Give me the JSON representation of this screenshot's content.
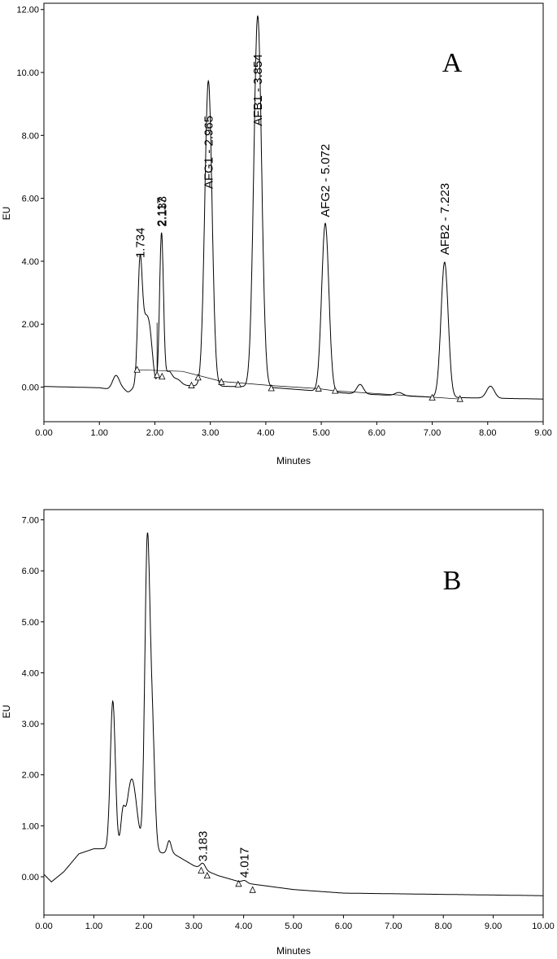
{
  "chart_data": [
    {
      "type": "line",
      "panel_letter": "A",
      "xlabel": "Minutes",
      "ylabel": "EU",
      "xlim": [
        0,
        9
      ],
      "ylim": [
        -1.1,
        12.2
      ],
      "x_ticks": [
        "0.00",
        "1.00",
        "2.00",
        "3.00",
        "4.00",
        "5.00",
        "6.00",
        "7.00",
        "8.00",
        "9.00"
      ],
      "y_ticks": [
        "0.00",
        "2.00",
        "4.00",
        "6.00",
        "8.00",
        "10.00",
        "12.00"
      ],
      "y_tick_values": [
        0,
        2,
        4,
        6,
        8,
        10,
        12
      ],
      "grid": false,
      "trace": {
        "baseline": [
          [
            0,
            0.02
          ],
          [
            1.0,
            -0.02
          ],
          [
            1.15,
            -0.06
          ],
          [
            2.5,
            0.05
          ],
          [
            4.0,
            0.0
          ],
          [
            5.5,
            -0.2
          ],
          [
            7.0,
            -0.32
          ],
          [
            9.0,
            -0.38
          ]
        ],
        "peaks": [
          [
            1.3,
            0.42,
            0.06
          ],
          [
            1.52,
            -0.12,
            0.05
          ],
          [
            1.73,
            3.45,
            0.04
          ],
          [
            1.83,
            2.0,
            0.07
          ],
          [
            1.92,
            0.9,
            0.05
          ],
          [
            2.12,
            4.85,
            0.035
          ],
          [
            2.25,
            0.45,
            0.06
          ],
          [
            2.4,
            0.2,
            0.07
          ],
          [
            2.965,
            9.7,
            0.065
          ],
          [
            3.854,
            11.8,
            0.07
          ],
          [
            5.072,
            5.35,
            0.065
          ],
          [
            5.7,
            0.3,
            0.06
          ],
          [
            6.4,
            0.1,
            0.07
          ],
          [
            7.223,
            4.3,
            0.065
          ],
          [
            8.05,
            0.38,
            0.07
          ]
        ]
      },
      "integration_baseline": [
        [
          1.68,
          0.55
        ],
        [
          2.5,
          0.5
        ],
        [
          3.2,
          0.18
        ],
        [
          4.1,
          0.05
        ],
        [
          4.95,
          -0.05
        ],
        [
          5.25,
          -0.12
        ],
        [
          7.0,
          -0.32
        ],
        [
          7.5,
          -0.38
        ]
      ],
      "markers": [
        {
          "x": 1.68,
          "y": 0.55
        },
        {
          "x": 2.04,
          "y": 0.38
        },
        {
          "x": 2.13,
          "y": 0.33
        },
        {
          "x": 2.66,
          "y": 0.05
        },
        {
          "x": 2.78,
          "y": 0.3
        },
        {
          "x": 3.2,
          "y": 0.16
        },
        {
          "x": 3.5,
          "y": 0.08
        },
        {
          "x": 4.1,
          "y": -0.04
        },
        {
          "x": 4.95,
          "y": -0.05
        },
        {
          "x": 5.25,
          "y": -0.12
        },
        {
          "x": 7.0,
          "y": -0.34
        },
        {
          "x": 7.5,
          "y": -0.38
        }
      ],
      "drop_lines": [
        {
          "x": 2.04,
          "y_top": 2.05,
          "y_bottom": 0.38
        }
      ],
      "annotations": [
        {
          "text": "1.734",
          "x": 1.734,
          "y": 4.1
        },
        {
          "text": "2.117",
          "x": 2.117,
          "y": 5.1
        },
        {
          "text": "2.133",
          "x": 2.133,
          "y": 5.1
        },
        {
          "text": "AFG1 - 2.965",
          "x": 2.965,
          "y": 6.3
        },
        {
          "text": "AFB1 - 3.854",
          "x": 3.854,
          "y": 8.3
        },
        {
          "text": "AFG2 - 5.072",
          "x": 5.072,
          "y": 5.4
        },
        {
          "text": "AFB2 - 7.223",
          "x": 7.223,
          "y": 4.2
        }
      ]
    },
    {
      "type": "line",
      "panel_letter": "B",
      "xlabel": "Minutes",
      "ylabel": "EU",
      "xlim": [
        0,
        10
      ],
      "ylim": [
        -0.75,
        7.2
      ],
      "x_ticks": [
        "0.00",
        "1.00",
        "2.00",
        "3.00",
        "4.00",
        "5.00",
        "6.00",
        "7.00",
        "8.00",
        "9.00",
        "10.00"
      ],
      "y_ticks": [
        "0.00",
        "1.00",
        "2.00",
        "3.00",
        "4.00",
        "5.00",
        "6.00",
        "7.00"
      ],
      "y_tick_values": [
        0,
        1,
        2,
        3,
        4,
        5,
        6,
        7
      ],
      "grid": false,
      "trace": {
        "baseline": [
          [
            0,
            0.05
          ],
          [
            0.15,
            -0.1
          ],
          [
            0.4,
            0.1
          ],
          [
            0.7,
            0.45
          ],
          [
            1.0,
            0.55
          ],
          [
            1.3,
            0.55
          ],
          [
            2.0,
            0.5
          ],
          [
            2.6,
            0.45
          ],
          [
            3.0,
            0.22
          ],
          [
            3.5,
            0.02
          ],
          [
            4.0,
            -0.12
          ],
          [
            5.0,
            -0.25
          ],
          [
            6.0,
            -0.32
          ],
          [
            10.0,
            -0.37
          ]
        ],
        "peaks": [
          [
            1.38,
            2.9,
            0.05
          ],
          [
            1.58,
            0.55,
            0.04
          ],
          [
            1.76,
            1.4,
            0.1
          ],
          [
            2.07,
            5.9,
            0.05
          ],
          [
            2.17,
            2.3,
            0.05
          ],
          [
            2.51,
            0.25,
            0.04
          ],
          [
            3.183,
            0.12,
            0.05
          ],
          [
            4.017,
            0.05,
            0.05
          ]
        ]
      },
      "integration_baseline": [],
      "markers": [
        {
          "x": 3.15,
          "y": 0.12
        },
        {
          "x": 3.27,
          "y": 0.02
        },
        {
          "x": 3.9,
          "y": -0.14
        },
        {
          "x": 4.18,
          "y": -0.26
        }
      ],
      "drop_lines": [],
      "annotations": [
        {
          "text": "3.183",
          "x": 3.183,
          "y": 0.3
        },
        {
          "text": "4.017",
          "x": 4.017,
          "y": -0.02
        }
      ]
    }
  ]
}
